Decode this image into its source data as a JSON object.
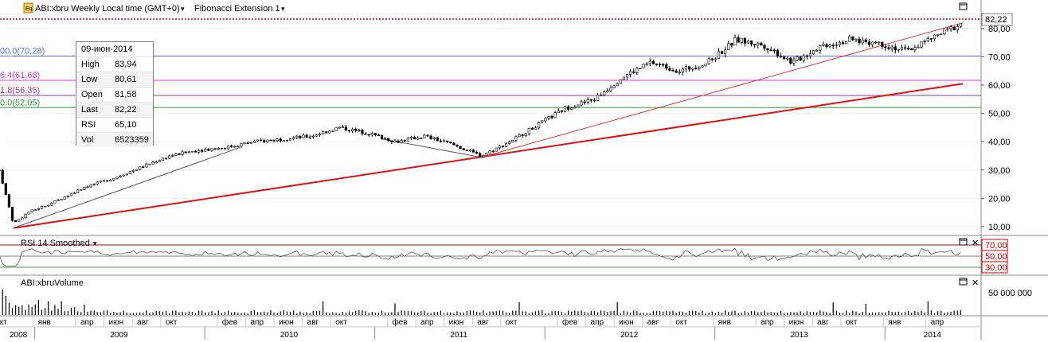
{
  "header": {
    "symbol_label": "ABI:xbru Weekly Local time (GMT+0)",
    "study_label": "Fibonacci Extension 1",
    "last_price_tag": "82,22"
  },
  "fib_levels": [
    {
      "label": "00.0(70,28)",
      "value": 70.28,
      "color": "#5a6cf0"
    },
    {
      "label": "6.4(61,68)",
      "value": 61.68,
      "color": "#d63bd6"
    },
    {
      "label": "1.8(56,35)",
      "value": 56.35,
      "color": "#9a3a9a"
    },
    {
      "label": "0.0(52,05)",
      "value": 52.05,
      "color": "#3a9a3a"
    }
  ],
  "price_axis": [
    "82,22",
    "80,00",
    "70,00",
    "60,00",
    "50,00",
    "40,00",
    "30,00",
    "20,00",
    "10,00"
  ],
  "tooltip": {
    "date": "09-июн-2014",
    "rows": [
      {
        "k": "High",
        "v": "83,94"
      },
      {
        "k": "Low",
        "v": "80,61"
      },
      {
        "k": "Open",
        "v": "81,58"
      },
      {
        "k": "Last",
        "v": "82,22"
      },
      {
        "k": "RSI",
        "v": "65,10"
      },
      {
        "k": "Vol",
        "v": "6523359"
      }
    ]
  },
  "rsi_panel": {
    "title": "RSI 14 Smoothed",
    "levels": [
      "70,00",
      "50,00",
      "30,00"
    ]
  },
  "volume_panel": {
    "title": "ABI:xbruVolume",
    "axis_label": "50 000 000"
  },
  "time_axis": {
    "months": [
      "окт",
      "янв",
      "апр",
      "июн",
      "авг",
      "окт",
      "фев",
      "апр",
      "июн",
      "авг",
      "окт",
      "фев",
      "апр",
      "июн",
      "авг",
      "окт",
      "фев",
      "апр",
      "июн",
      "авг",
      "окт",
      "янв",
      "апр",
      "июн",
      "авг",
      "окт",
      "янв",
      "апр"
    ],
    "years": [
      "2008",
      "2009",
      "2010",
      "2011",
      "2012",
      "2013",
      "2014"
    ]
  },
  "chart_data": {
    "type": "candlestick",
    "title": "ABI:xbru Weekly",
    "ylim": [
      5,
      88
    ],
    "x_range": [
      "2008-10",
      "2014-06"
    ],
    "y_ticks": [
      10,
      20,
      30,
      40,
      50,
      60,
      70,
      80
    ],
    "price_path": [
      {
        "d": "2008-10",
        "v": 30
      },
      {
        "d": "2008-11",
        "v": 11
      },
      {
        "d": "2008-12",
        "v": 15
      },
      {
        "d": "2009-02",
        "v": 19
      },
      {
        "d": "2009-04",
        "v": 24
      },
      {
        "d": "2009-06",
        "v": 27
      },
      {
        "d": "2009-08",
        "v": 31
      },
      {
        "d": "2009-10",
        "v": 35
      },
      {
        "d": "2009-12",
        "v": 37
      },
      {
        "d": "2010-02",
        "v": 38
      },
      {
        "d": "2010-04",
        "v": 40
      },
      {
        "d": "2010-06",
        "v": 41
      },
      {
        "d": "2010-08",
        "v": 42
      },
      {
        "d": "2010-10",
        "v": 45
      },
      {
        "d": "2010-12",
        "v": 43
      },
      {
        "d": "2011-02",
        "v": 40
      },
      {
        "d": "2011-04",
        "v": 42
      },
      {
        "d": "2011-06",
        "v": 39
      },
      {
        "d": "2011-08",
        "v": 35
      },
      {
        "d": "2011-10",
        "v": 40
      },
      {
        "d": "2011-12",
        "v": 46
      },
      {
        "d": "2012-02",
        "v": 52
      },
      {
        "d": "2012-04",
        "v": 55
      },
      {
        "d": "2012-06",
        "v": 63
      },
      {
        "d": "2012-08",
        "v": 68
      },
      {
        "d": "2012-10",
        "v": 65
      },
      {
        "d": "2012-12",
        "v": 68
      },
      {
        "d": "2013-02",
        "v": 76
      },
      {
        "d": "2013-04",
        "v": 74
      },
      {
        "d": "2013-06",
        "v": 68
      },
      {
        "d": "2013-08",
        "v": 74
      },
      {
        "d": "2013-10",
        "v": 76
      },
      {
        "d": "2013-12",
        "v": 75
      },
      {
        "d": "2014-02",
        "v": 72
      },
      {
        "d": "2014-04",
        "v": 77
      },
      {
        "d": "2014-06",
        "v": 82
      }
    ],
    "trendlines": [
      {
        "from": {
          "d": "2008-11",
          "v": 9.5
        },
        "to": {
          "d": "2014-06",
          "v": 60.5
        },
        "color": "#e01010",
        "width": 2
      },
      {
        "from": {
          "d": "2011-08",
          "v": 34.5
        },
        "to": {
          "d": "2014-06",
          "v": 82
        },
        "color": "#e03030",
        "width": 1
      },
      {
        "from": {
          "d": "2008-11",
          "v": 9.5
        },
        "to": {
          "d": "2010-03",
          "v": 38
        },
        "color": "#555555",
        "width": 1
      },
      {
        "from": {
          "d": "2011-01",
          "v": 41
        },
        "to": {
          "d": "2011-08",
          "v": 34.5
        },
        "color": "#555555",
        "width": 1
      }
    ],
    "rsi_levels": [
      70,
      50,
      30
    ],
    "rsi_last": 65.1,
    "volume_last": 6523359,
    "last": 82.22
  }
}
